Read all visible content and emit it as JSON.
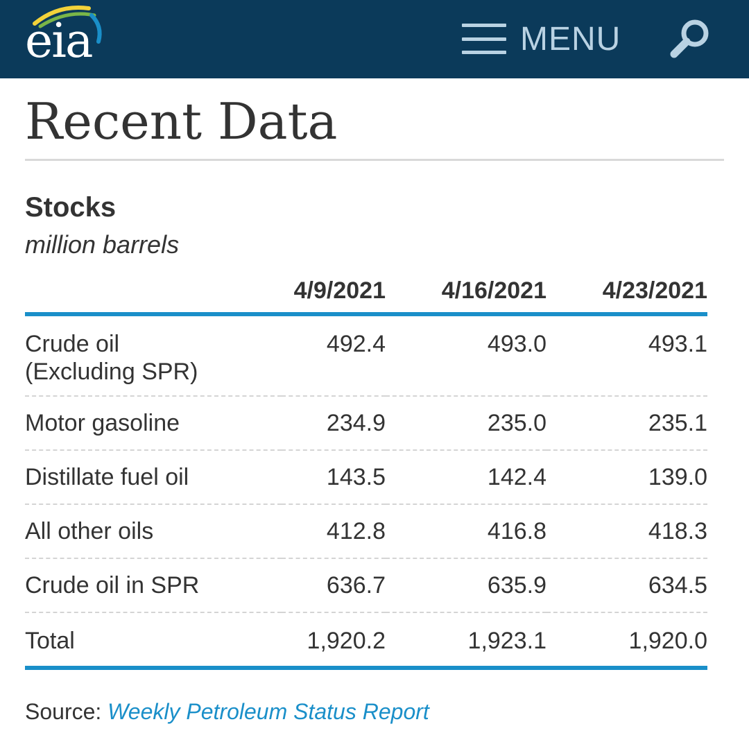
{
  "header": {
    "logo_text": "eia",
    "menu_label": "MENU",
    "colors": {
      "bar": "#0b3a5a",
      "menu": "#b9d2e3"
    },
    "icons": {
      "menu": "hamburger-icon",
      "search": "search-icon"
    }
  },
  "main": {
    "title": "Recent Data",
    "section": {
      "title": "Stocks",
      "units": "million barrels"
    },
    "table": {
      "columns": [
        "",
        "4/9/2021",
        "4/16/2021",
        "4/23/2021"
      ],
      "rows": [
        {
          "label_line1": "Crude oil",
          "label_line2": "(Excluding SPR)",
          "values": [
            "492.4",
            "493.0",
            "493.1"
          ]
        },
        {
          "label": "Motor gasoline",
          "values": [
            "234.9",
            "235.0",
            "235.1"
          ]
        },
        {
          "label": "Distillate fuel oil",
          "values": [
            "143.5",
            "142.4",
            "139.0"
          ]
        },
        {
          "label": "All other oils",
          "values": [
            "412.8",
            "416.8",
            "418.3"
          ]
        },
        {
          "label": "Crude oil in SPR",
          "values": [
            "636.7",
            "635.9",
            "634.5"
          ]
        },
        {
          "label": "Total",
          "values": [
            "1,920.2",
            "1,923.1",
            "1,920.0"
          ]
        }
      ],
      "accent_color": "#1a8fc9"
    },
    "source": {
      "label": "Source:",
      "link_text": "Weekly Petroleum Status Report"
    }
  }
}
